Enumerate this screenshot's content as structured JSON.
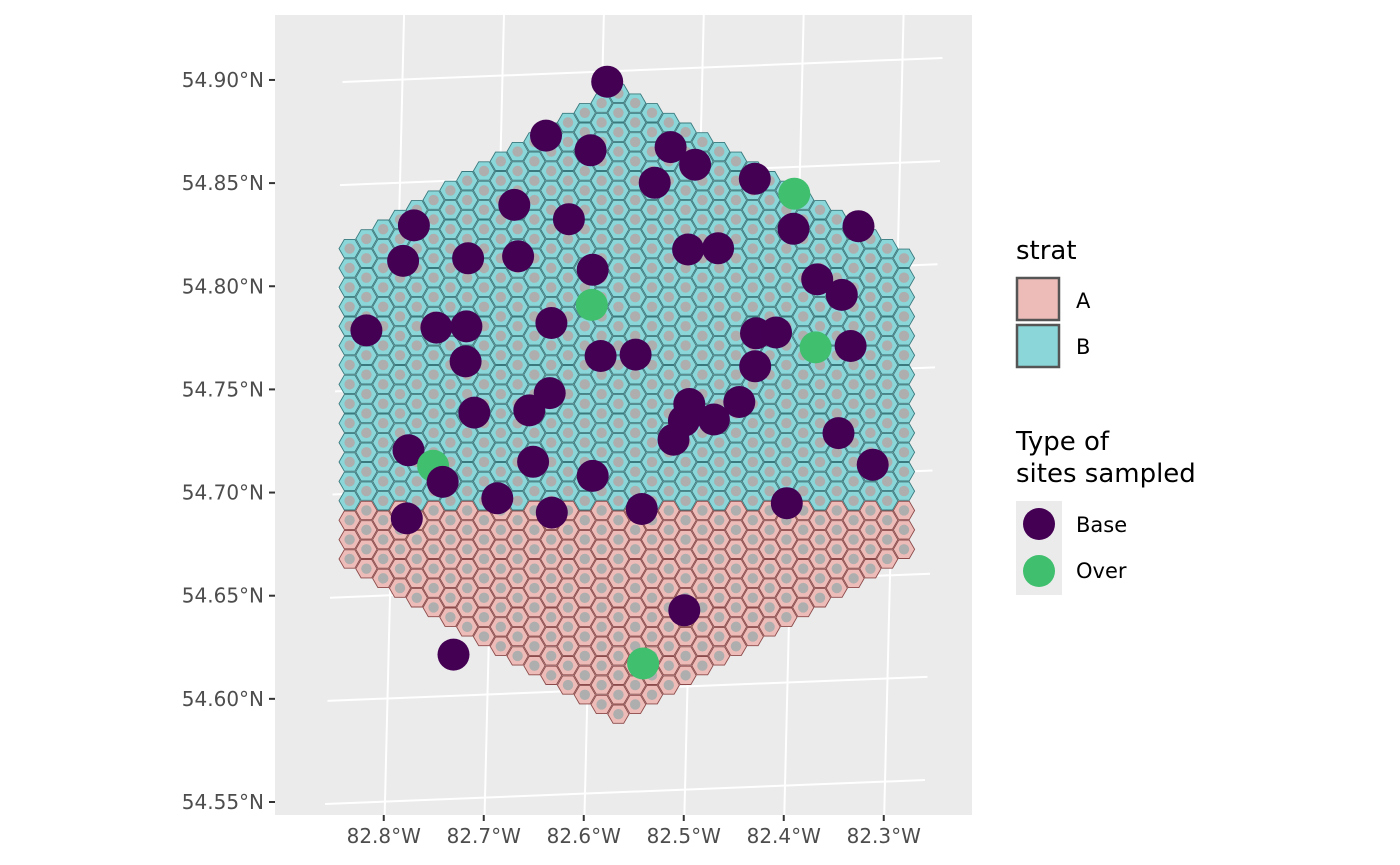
{
  "map": {
    "type": "hexagonal sample frame map with sampled sites",
    "x_ticks": [
      "82.8°W",
      "82.7°W",
      "82.6°W",
      "82.5°W",
      "82.4°W",
      "82.3°W"
    ],
    "y_ticks": [
      "54.90°N",
      "54.85°N",
      "54.80°N",
      "54.75°N",
      "54.70°N",
      "54.65°N",
      "54.60°N",
      "54.55°N"
    ],
    "strata_boundary_lat": 54.69,
    "colors": {
      "panel_bg": "#ebebeb",
      "grid": "#ffffff",
      "stratum_A": "#edbcb8",
      "stratum_A_edge": "#8c4a4a",
      "stratum_B": "#8ad6d8",
      "stratum_B_edge": "#3a7a7e",
      "hex_center_dot": "#aeaeae",
      "base": "#440154",
      "over": "#40bf6e"
    }
  },
  "legend_strat": {
    "title": "strat",
    "items": [
      {
        "label": "A",
        "color": "#edbcb8"
      },
      {
        "label": "B",
        "color": "#8ad6d8"
      }
    ]
  },
  "legend_type": {
    "title_line1": "Type of",
    "title_line2": "sites sampled",
    "items": [
      {
        "label": "Base",
        "color": "#440154"
      },
      {
        "label": "Over",
        "color": "#40bf6e"
      }
    ]
  },
  "sites": [
    {
      "type": "Base",
      "lon": -82.595,
      "lat": 54.895
    },
    {
      "type": "Base",
      "lon": -82.655,
      "lat": 54.87
    },
    {
      "type": "Base",
      "lon": -82.61,
      "lat": 54.862
    },
    {
      "type": "Base",
      "lon": -82.53,
      "lat": 54.862
    },
    {
      "type": "Base",
      "lon": -82.505,
      "lat": 54.853
    },
    {
      "type": "Base",
      "lon": -82.545,
      "lat": 54.845
    },
    {
      "type": "Base",
      "lon": -82.445,
      "lat": 54.845
    },
    {
      "type": "Over",
      "lon": -82.405,
      "lat": 54.837
    },
    {
      "type": "Base",
      "lon": -82.685,
      "lat": 54.837
    },
    {
      "type": "Base",
      "lon": -82.785,
      "lat": 54.829
    },
    {
      "type": "Base",
      "lon": -82.63,
      "lat": 54.829
    },
    {
      "type": "Base",
      "lon": -82.405,
      "lat": 54.82
    },
    {
      "type": "Base",
      "lon": -82.34,
      "lat": 54.82
    },
    {
      "type": "Base",
      "lon": -82.795,
      "lat": 54.812
    },
    {
      "type": "Base",
      "lon": -82.73,
      "lat": 54.812
    },
    {
      "type": "Base",
      "lon": -82.68,
      "lat": 54.812
    },
    {
      "type": "Base",
      "lon": -82.51,
      "lat": 54.812
    },
    {
      "type": "Base",
      "lon": -82.48,
      "lat": 54.812
    },
    {
      "type": "Base",
      "lon": -82.605,
      "lat": 54.804
    },
    {
      "type": "Base",
      "lon": -82.38,
      "lat": 54.795
    },
    {
      "type": "Over",
      "lon": -82.605,
      "lat": 54.787
    },
    {
      "type": "Base",
      "lon": -82.355,
      "lat": 54.787
    },
    {
      "type": "Base",
      "lon": -82.83,
      "lat": 54.779
    },
    {
      "type": "Base",
      "lon": -82.76,
      "lat": 54.779
    },
    {
      "type": "Base",
      "lon": -82.73,
      "lat": 54.779
    },
    {
      "type": "Base",
      "lon": -82.645,
      "lat": 54.779
    },
    {
      "type": "Base",
      "lon": -82.44,
      "lat": 54.77
    },
    {
      "type": "Base",
      "lon": -82.42,
      "lat": 54.77
    },
    {
      "type": "Base",
      "lon": -82.73,
      "lat": 54.762
    },
    {
      "type": "Base",
      "lon": -82.595,
      "lat": 54.762
    },
    {
      "type": "Base",
      "lon": -82.56,
      "lat": 54.762
    },
    {
      "type": "Over",
      "lon": -82.38,
      "lat": 54.762
    },
    {
      "type": "Base",
      "lon": -82.345,
      "lat": 54.762
    },
    {
      "type": "Base",
      "lon": -82.44,
      "lat": 54.754
    },
    {
      "type": "Base",
      "lon": -82.645,
      "lat": 54.745
    },
    {
      "type": "Base",
      "lon": -82.72,
      "lat": 54.737
    },
    {
      "type": "Base",
      "lon": -82.665,
      "lat": 54.737
    },
    {
      "type": "Base",
      "lon": -82.505,
      "lat": 54.737
    },
    {
      "type": "Base",
      "lon": -82.455,
      "lat": 54.737
    },
    {
      "type": "Base",
      "lon": -82.51,
      "lat": 54.729
    },
    {
      "type": "Base",
      "lon": -82.48,
      "lat": 54.729
    },
    {
      "type": "Base",
      "lon": -82.785,
      "lat": 54.72
    },
    {
      "type": "Base",
      "lon": -82.52,
      "lat": 54.72
    },
    {
      "type": "Base",
      "lon": -82.355,
      "lat": 54.72
    },
    {
      "type": "Over",
      "lon": -82.76,
      "lat": 54.712
    },
    {
      "type": "Base",
      "lon": -82.66,
      "lat": 54.712
    },
    {
      "type": "Base",
      "lon": -82.75,
      "lat": 54.704
    },
    {
      "type": "Base",
      "lon": -82.6,
      "lat": 54.704
    },
    {
      "type": "Base",
      "lon": -82.32,
      "lat": 54.704
    },
    {
      "type": "Base",
      "lon": -82.695,
      "lat": 54.695
    },
    {
      "type": "Base",
      "lon": -82.785,
      "lat": 54.687
    },
    {
      "type": "Base",
      "lon": -82.64,
      "lat": 54.687
    },
    {
      "type": "Base",
      "lon": -82.55,
      "lat": 54.687
    },
    {
      "type": "Base",
      "lon": -82.405,
      "lat": 54.687
    },
    {
      "type": "Base",
      "lon": -82.505,
      "lat": 54.637
    },
    {
      "type": "Base",
      "lon": -82.735,
      "lat": 54.62
    },
    {
      "type": "Over",
      "lon": -82.545,
      "lat": 54.612
    }
  ]
}
